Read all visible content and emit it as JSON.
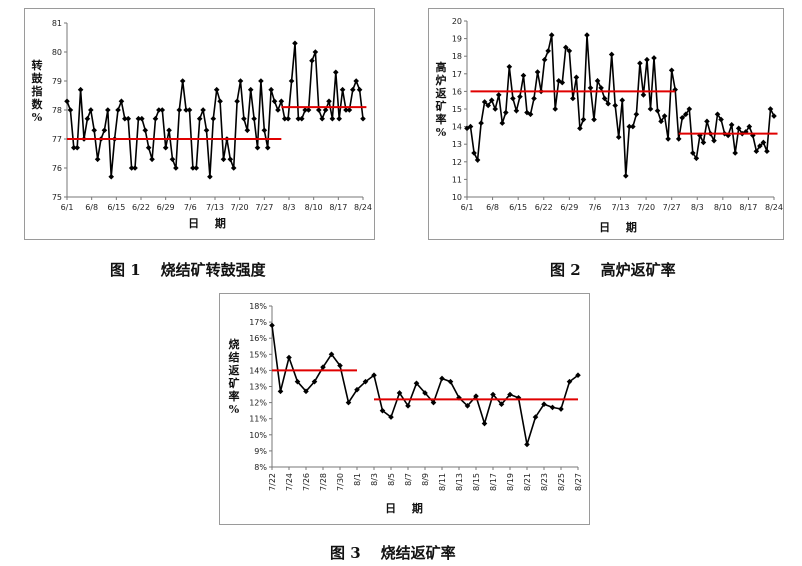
{
  "captions": [
    {
      "num": "图 1",
      "text": "烧结矿转鼓强度"
    },
    {
      "num": "图 2",
      "text": "高炉返矿率"
    },
    {
      "num": "图 3",
      "text": "烧结返矿率"
    }
  ],
  "chart_data": [
    {
      "type": "line",
      "ylabel": "转鼓指数 %",
      "xlabel": "日 期",
      "ylim": [
        75,
        81
      ],
      "yticks": [
        "75",
        "76",
        "77",
        "78",
        "79",
        "80",
        "81"
      ],
      "xticks": [
        "6/1",
        "6/8",
        "6/15",
        "6/22",
        "6/29",
        "7/6",
        "7/13",
        "7/20",
        "7/27",
        "8/3",
        "8/10",
        "8/17",
        "8/24"
      ],
      "line_color": "#000000",
      "ref_color": "#e00000",
      "values": [
        78.3,
        78.0,
        76.7,
        76.7,
        78.7,
        77.0,
        77.7,
        78.0,
        77.3,
        76.3,
        77.0,
        77.3,
        78.0,
        75.7,
        77.0,
        78.0,
        78.3,
        77.7,
        77.7,
        76.0,
        76.0,
        77.7,
        77.7,
        77.3,
        76.7,
        76.3,
        77.7,
        78.0,
        78.0,
        76.7,
        77.3,
        76.3,
        76.0,
        78.0,
        79.0,
        78.0,
        78.0,
        76.0,
        76.0,
        77.7,
        78.0,
        77.3,
        75.7,
        77.7,
        78.7,
        78.3,
        76.3,
        77.0,
        76.3,
        76.0,
        78.3,
        79.0,
        77.7,
        77.3,
        78.7,
        77.7,
        76.7,
        79.0,
        77.3,
        76.7,
        78.7,
        78.3,
        78.0,
        78.3,
        77.7,
        77.7,
        79.0,
        80.3,
        77.7,
        77.7,
        78.0,
        78.0,
        79.7,
        80.0,
        78.0,
        77.7,
        78.0,
        78.3,
        77.7,
        79.3,
        77.7,
        78.7,
        78.0,
        78.0,
        78.7,
        79.0,
        78.7,
        77.7
      ],
      "ref_lines": [
        {
          "from": 0,
          "to": 63,
          "value": 77.0
        },
        {
          "from": 63,
          "to": 88,
          "value": 78.1
        }
      ]
    },
    {
      "type": "line",
      "ylabel": "高炉返矿率 %",
      "xlabel": "日 期",
      "ylim": [
        10,
        20
      ],
      "yticks": [
        "10",
        "11",
        "12",
        "13",
        "14",
        "15",
        "16",
        "17",
        "18",
        "19",
        "20"
      ],
      "xticks": [
        "6/1",
        "6/8",
        "6/15",
        "6/22",
        "6/29",
        "7/6",
        "7/13",
        "7/20",
        "7/27",
        "8/3",
        "8/10",
        "8/17",
        "8/24"
      ],
      "line_color": "#000000",
      "ref_color": "#e00000",
      "values": [
        13.9,
        14.0,
        12.5,
        12.1,
        14.2,
        15.4,
        15.2,
        15.5,
        15.0,
        15.8,
        14.2,
        14.8,
        17.4,
        15.6,
        14.9,
        15.7,
        16.9,
        14.8,
        14.7,
        15.6,
        17.1,
        16.0,
        17.8,
        18.3,
        19.2,
        15.0,
        16.6,
        16.5,
        18.5,
        18.3,
        15.6,
        16.8,
        13.9,
        14.4,
        19.2,
        16.2,
        14.4,
        16.6,
        16.2,
        15.6,
        15.3,
        18.1,
        15.2,
        13.4,
        15.5,
        11.2,
        14.0,
        14.0,
        14.7,
        17.6,
        15.8,
        17.8,
        15.0,
        17.9,
        14.9,
        14.3,
        14.6,
        13.3,
        17.2,
        16.1,
        13.3,
        14.5,
        14.7,
        15.0,
        12.5,
        12.2,
        13.5,
        13.1,
        14.3,
        13.6,
        13.2,
        14.7,
        14.4,
        13.6,
        13.5,
        14.1,
        12.5,
        13.9,
        13.6,
        13.7,
        14.0,
        13.5,
        12.6,
        12.9,
        13.1,
        12.6,
        15.0,
        14.6
      ],
      "ref_lines": [
        {
          "from": 1,
          "to": 59,
          "value": 16.0
        },
        {
          "from": 60,
          "to": 88,
          "value": 13.6
        }
      ]
    },
    {
      "type": "line",
      "ylabel": "烧结返矿率 %",
      "xlabel": "日 期",
      "ylim": [
        8,
        18
      ],
      "yticks": [
        "8%",
        "9%",
        "10%",
        "11%",
        "12%",
        "13%",
        "14%",
        "15%",
        "16%",
        "17%",
        "18%"
      ],
      "xticks": [
        "7/22",
        "7/24",
        "7/26",
        "7/28",
        "7/30",
        "8/1",
        "8/3",
        "8/5",
        "8/7",
        "8/9",
        "8/11",
        "8/13",
        "8/15",
        "8/17",
        "8/19",
        "8/21",
        "8/23",
        "8/25",
        "8/27"
      ],
      "line_color": "#000000",
      "ref_color": "#e00000",
      "values": [
        16.8,
        12.7,
        14.8,
        13.3,
        12.7,
        13.3,
        14.2,
        15.0,
        14.3,
        12.0,
        12.8,
        13.3,
        13.7,
        11.5,
        11.1,
        12.6,
        11.8,
        13.2,
        12.6,
        12.0,
        13.5,
        13.3,
        12.3,
        11.8,
        12.4,
        10.7,
        12.5,
        11.9,
        12.5,
        12.3,
        9.4,
        11.1,
        11.9,
        11.7,
        11.6,
        13.3,
        13.7
      ],
      "ref_lines": [
        {
          "from": 0,
          "to": 10,
          "value": 14.0
        },
        {
          "from": 12,
          "to": 36,
          "value": 12.2
        }
      ]
    }
  ]
}
